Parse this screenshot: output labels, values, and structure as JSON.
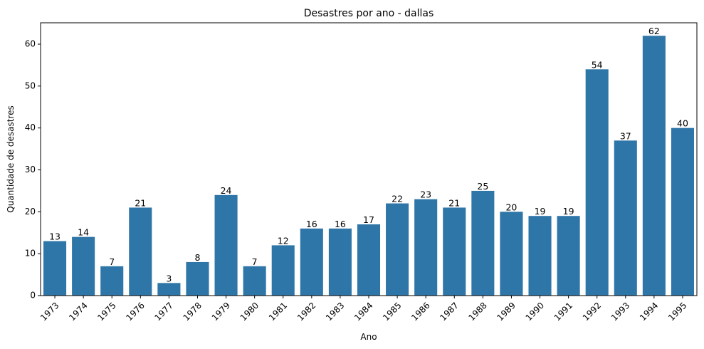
{
  "chart_data": {
    "type": "bar",
    "title": "Desastres por ano - dallas",
    "xlabel": "Ano",
    "ylabel": "Quantidade de desastres",
    "categories": [
      "1973",
      "1974",
      "1975",
      "1976",
      "1977",
      "1978",
      "1979",
      "1980",
      "1981",
      "1982",
      "1983",
      "1984",
      "1985",
      "1986",
      "1987",
      "1988",
      "1989",
      "1990",
      "1991",
      "1992",
      "1993",
      "1994",
      "1995"
    ],
    "values": [
      13,
      14,
      7,
      21,
      3,
      8,
      24,
      7,
      12,
      16,
      16,
      17,
      22,
      23,
      21,
      25,
      20,
      19,
      19,
      54,
      37,
      62,
      40
    ],
    "yticks": [
      0,
      10,
      20,
      30,
      40,
      50,
      60
    ],
    "ylim": [
      0,
      65.1
    ],
    "bar_color": "#2e75a8",
    "grid": false,
    "data_labels": true,
    "x_tick_rotation": 45
  }
}
